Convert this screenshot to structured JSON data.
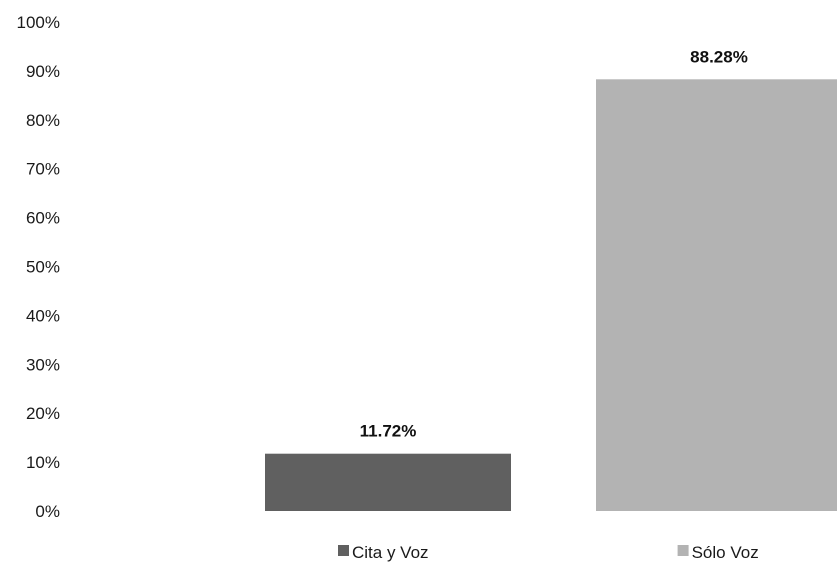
{
  "chart_data": {
    "type": "bar",
    "categories": [
      "Cita y Voz",
      "Sólo Voz"
    ],
    "values": [
      11.72,
      88.28
    ],
    "data_labels": [
      "11.72%",
      "88.28%"
    ],
    "colors": [
      "#606060",
      "#b3b3b3"
    ],
    "ylim": [
      0,
      100
    ],
    "y_ticks": [
      {
        "value": 0,
        "label": "0%"
      },
      {
        "value": 10,
        "label": "10%"
      },
      {
        "value": 20,
        "label": "20%"
      },
      {
        "value": 30,
        "label": "30%"
      },
      {
        "value": 40,
        "label": "40%"
      },
      {
        "value": 50,
        "label": "50%"
      },
      {
        "value": 60,
        "label": "60%"
      },
      {
        "value": 70,
        "label": "70%"
      },
      {
        "value": 80,
        "label": "80%"
      },
      {
        "value": 90,
        "label": "90%"
      },
      {
        "value": 100,
        "label": "100%"
      }
    ],
    "grid": false,
    "legend": {
      "position": "bottom",
      "entries": [
        "Cita y Voz",
        "Sólo Voz"
      ]
    }
  }
}
